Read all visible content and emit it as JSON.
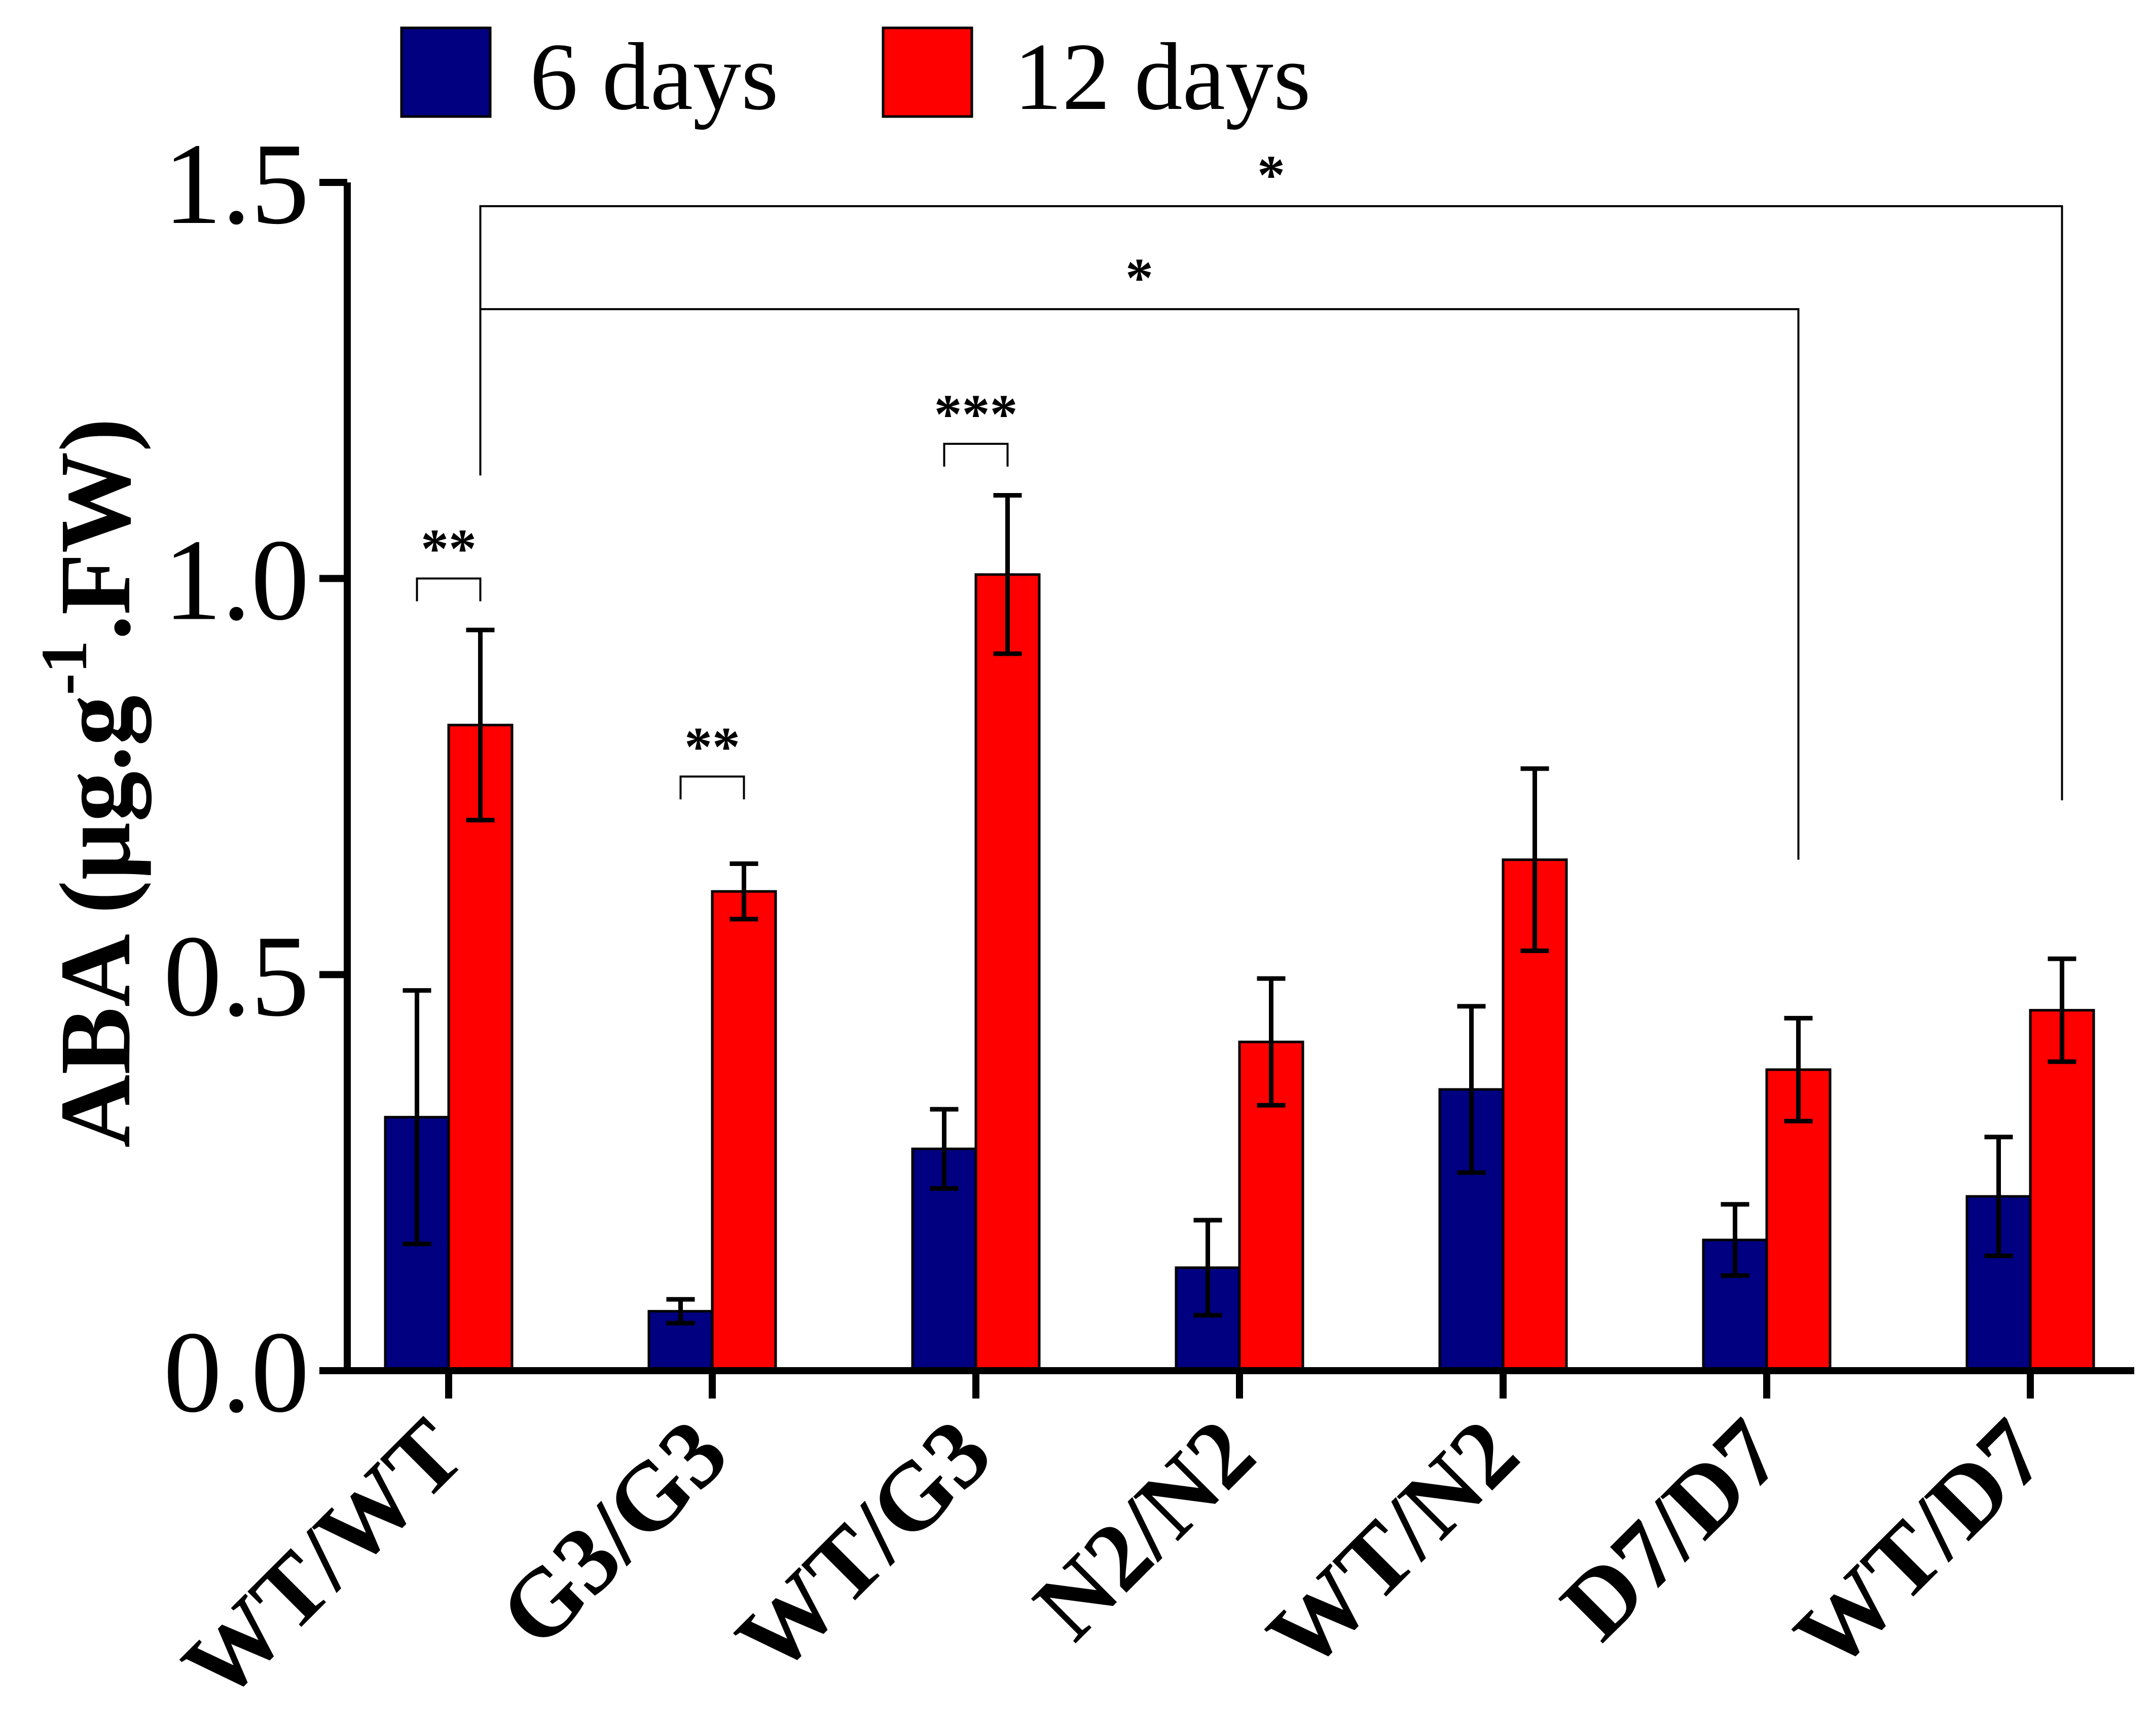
{
  "chart_data": {
    "type": "bar",
    "title": "",
    "xlabel": "",
    "ylabel": {
      "prefix": "ABA (µg.g",
      "superscript": "-1",
      "suffix": ".FW)"
    },
    "ylim": [
      0,
      1.5
    ],
    "yticks": [
      {
        "value": 0.0,
        "label": "0.0"
      },
      {
        "value": 0.5,
        "label": "0.5"
      },
      {
        "value": 1.0,
        "label": "1.0"
      },
      {
        "value": 1.5,
        "label": "1.5"
      }
    ],
    "categories": [
      "WT/WT",
      "G3/G3",
      "WT/G3",
      "N2/N2",
      "WT/N2",
      "D7/D7",
      "WT/D7"
    ],
    "series": [
      {
        "name": "6 days",
        "color": "#000080",
        "values": [
          0.32,
          0.075,
          0.28,
          0.13,
          0.355,
          0.165,
          0.22
        ],
        "errors": [
          0.16,
          0.015,
          0.05,
          0.06,
          0.105,
          0.045,
          0.075
        ]
      },
      {
        "name": "12 days",
        "color": "#ff0000",
        "values": [
          0.815,
          0.605,
          1.005,
          0.415,
          0.645,
          0.38,
          0.455
        ],
        "errors": [
          0.12,
          0.035,
          0.1,
          0.08,
          0.115,
          0.065,
          0.065
        ]
      }
    ],
    "legend": {
      "placement": "top",
      "entries": [
        {
          "label": "6 days",
          "color": "#000080"
        },
        {
          "label": "12 days",
          "color": "#ff0000"
        }
      ]
    },
    "significance": [
      {
        "label": "**",
        "type": "pair",
        "category": 0,
        "level": 1.0
      },
      {
        "label": "**",
        "type": "pair",
        "category": 1,
        "level": 0.75
      },
      {
        "label": "***",
        "type": "pair",
        "category": 2,
        "level": 1.17
      },
      {
        "label": "*",
        "type": "span",
        "from_category": 0,
        "to_category": 5,
        "level": 1.34
      },
      {
        "label": "*",
        "type": "span",
        "from_category": 0,
        "to_category": 6,
        "level": 1.47
      }
    ],
    "grid": false
  }
}
